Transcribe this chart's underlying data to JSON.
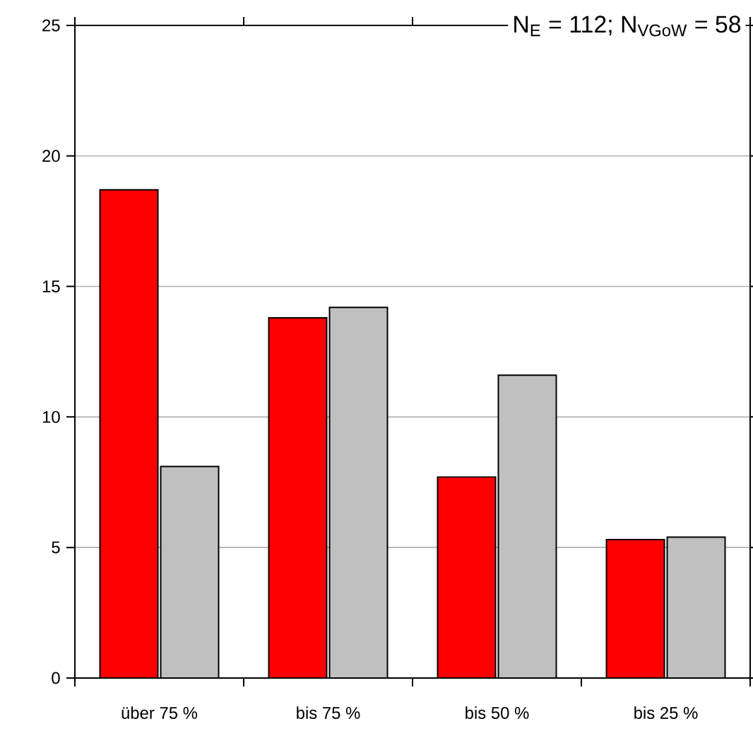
{
  "chart_data": {
    "type": "bar",
    "categories": [
      "über 75 %",
      "bis 75 %",
      "bis 50 %",
      "bis 25 %"
    ],
    "series": [
      {
        "color": "#ff0000",
        "values": [
          18.7,
          13.8,
          7.7,
          5.3
        ]
      },
      {
        "color": "#c0c0c0",
        "values": [
          8.1,
          14.2,
          11.6,
          5.4
        ]
      }
    ],
    "ylim": [
      0,
      25
    ],
    "yticks": [
      0,
      5,
      10,
      15,
      20,
      25
    ],
    "grid": "y",
    "annotations": [
      "N$_{E}$ = 112; N$_{VGoW}$ = 58"
    ]
  }
}
